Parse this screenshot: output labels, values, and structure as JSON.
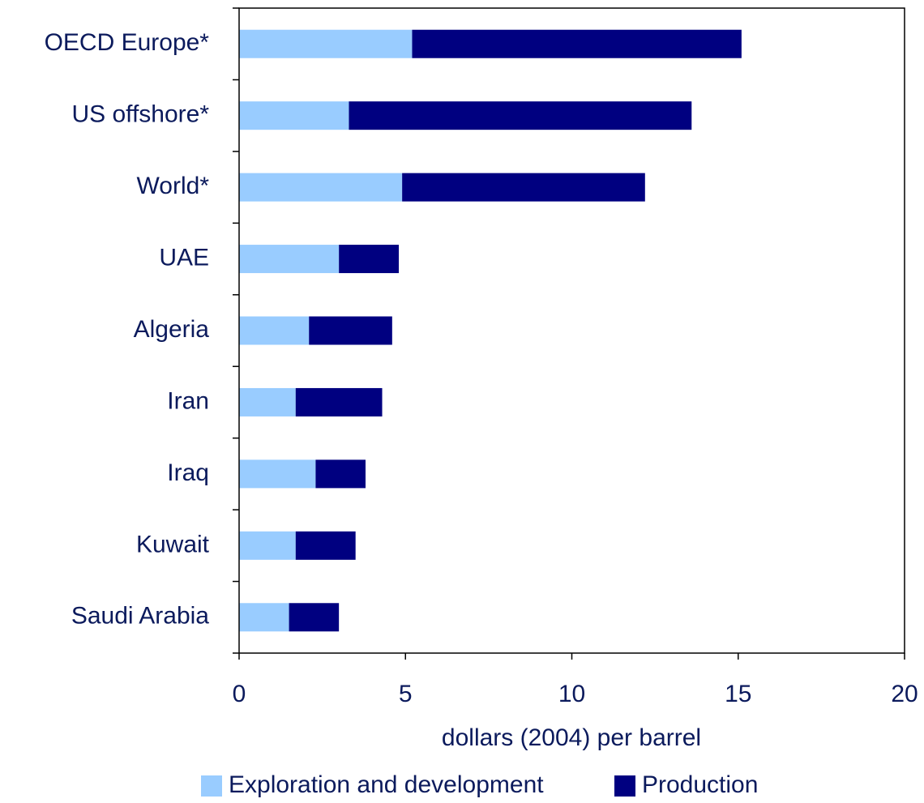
{
  "chart_data": {
    "type": "stacked-bar-horizontal",
    "x_label": "dollars (2004) per barrel",
    "categories": [
      "OECD Europe*",
      "US offshore*",
      "World*",
      "UAE",
      "Algeria",
      "Iran",
      "Iraq",
      "Kuwait",
      "Saudi Arabia"
    ],
    "series": [
      {
        "name": "Exploration and development",
        "color": "#99ccff",
        "values": [
          5.2,
          3.3,
          4.9,
          3.0,
          2.1,
          1.7,
          2.3,
          1.7,
          1.5
        ]
      },
      {
        "name": "Production",
        "color": "#000080",
        "values": [
          9.9,
          10.3,
          7.3,
          1.8,
          2.5,
          2.6,
          1.5,
          1.8,
          1.5
        ]
      }
    ],
    "xlim": [
      0,
      20
    ],
    "xticks": [
      0,
      5,
      10,
      15,
      20
    ],
    "grid": false
  }
}
